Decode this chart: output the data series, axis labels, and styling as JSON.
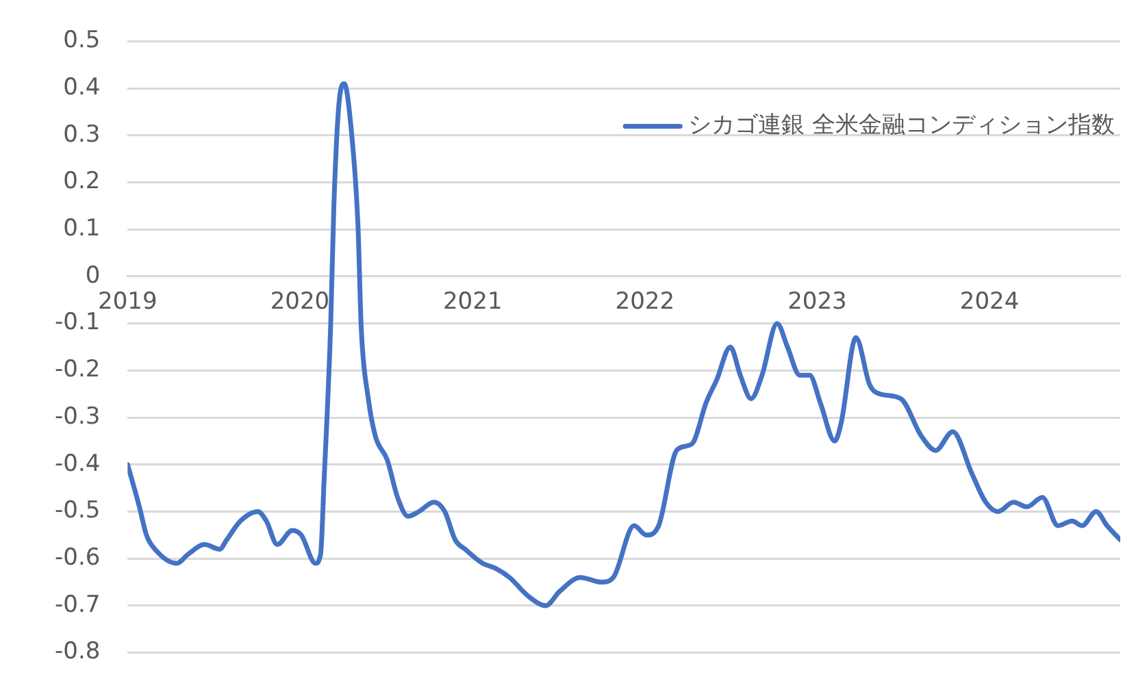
{
  "chart_data": {
    "type": "line",
    "legend": "top right",
    "grid": "y",
    "marker": "none",
    "line_style": "solid",
    "xlim": [
      "2019-01-01",
      "2024-10-04"
    ],
    "xticks": [
      "2019",
      "2020",
      "2021",
      "2022",
      "2023",
      "2024"
    ],
    "ylim": [
      -0.8,
      0.5
    ],
    "yticks": [
      -0.8,
      -0.7,
      -0.6,
      -0.5,
      -0.4,
      -0.3,
      -0.2,
      -0.1,
      0,
      0.1,
      0.2,
      0.3,
      0.4,
      0.5
    ],
    "x": [
      "2019-01-01",
      "2019-01-26",
      "2019-02-10",
      "2019-02-28",
      "2019-04-15",
      "2019-05-10",
      "2019-06-13",
      "2019-07-15",
      "2019-07-30",
      "2019-08-28",
      "2019-10-04",
      "2019-10-22",
      "2019-11-14",
      "2019-12-16",
      "2020-01-04",
      "2020-02-03",
      "2020-02-14",
      "2020-02-21",
      "2020-03-06",
      "2020-03-13",
      "2020-03-24",
      "2020-04-04",
      "2020-04-19",
      "2020-05-03",
      "2020-05-10",
      "2020-05-25",
      "2020-06-09",
      "2020-07-04",
      "2020-07-26",
      "2020-08-17",
      "2020-09-09",
      "2020-10-11",
      "2020-11-03",
      "2020-11-25",
      "2020-12-16",
      "2021-01-22",
      "2021-02-17",
      "2021-03-20",
      "2021-04-29",
      "2021-06-05",
      "2021-07-04",
      "2021-08-17",
      "2021-10-01",
      "2021-10-26",
      "2021-12-09",
      "2022-01-04",
      "2022-01-30",
      "2022-03-09",
      "2022-04-01",
      "2022-04-15",
      "2022-05-10",
      "2022-06-02",
      "2022-07-01",
      "2022-07-22",
      "2022-08-14",
      "2022-09-06",
      "2022-10-08",
      "2022-10-30",
      "2022-11-25",
      "2022-12-16",
      "2023-01-08",
      "2023-02-07",
      "2023-02-21",
      "2023-03-24",
      "2023-04-22",
      "2023-05-14",
      "2023-06-27",
      "2023-08-10",
      "2023-09-09",
      "2023-10-15",
      "2023-11-25",
      "2023-12-24",
      "2024-01-19",
      "2024-02-21",
      "2024-03-20",
      "2024-04-22",
      "2024-05-25",
      "2024-06-24",
      "2024-07-15",
      "2024-08-14",
      "2024-09-06",
      "2024-10-04"
    ],
    "series": [
      {
        "name": "シカゴ連銀 全米金融コンディション指数",
        "color": "#4472c4",
        "values": [
          -0.4,
          -0.49,
          -0.55,
          -0.58,
          -0.61,
          -0.59,
          -0.57,
          -0.58,
          -0.56,
          -0.52,
          -0.5,
          -0.52,
          -0.57,
          -0.54,
          -0.55,
          -0.61,
          -0.59,
          -0.44,
          -0.11,
          0.15,
          0.37,
          0.41,
          0.31,
          0.11,
          -0.11,
          -0.26,
          -0.34,
          -0.39,
          -0.47,
          -0.51,
          -0.5,
          -0.48,
          -0.5,
          -0.56,
          -0.58,
          -0.61,
          -0.62,
          -0.64,
          -0.68,
          -0.7,
          -0.67,
          -0.64,
          -0.65,
          -0.64,
          -0.53,
          -0.55,
          -0.53,
          -0.37,
          -0.36,
          -0.35,
          -0.27,
          -0.22,
          -0.15,
          -0.21,
          -0.26,
          -0.21,
          -0.1,
          -0.15,
          -0.21,
          -0.21,
          -0.27,
          -0.35,
          -0.31,
          -0.13,
          -0.23,
          -0.25,
          -0.26,
          -0.34,
          -0.37,
          -0.33,
          -0.42,
          -0.48,
          -0.5,
          -0.48,
          -0.49,
          -0.47,
          -0.53,
          -0.52,
          -0.53,
          -0.5,
          -0.53,
          -0.56
        ]
      }
    ]
  }
}
